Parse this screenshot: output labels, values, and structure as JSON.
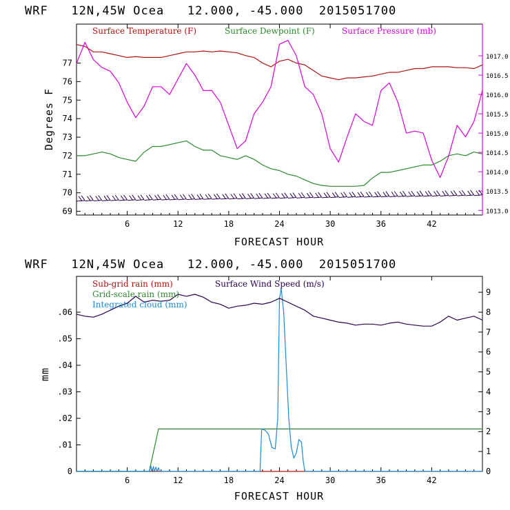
{
  "chart_data": [
    {
      "type": "line",
      "title": "WRF   12N,45W Ocea   12.000, -45.000  2015051700",
      "xlabel": "FORECAST HOUR",
      "ylabel": "Degrees F",
      "xlim": [
        0,
        48
      ],
      "ylim": [
        68.8,
        79.1
      ],
      "y2lim": [
        1012.88,
        1017.82
      ],
      "xticks": [
        6,
        12,
        18,
        24,
        30,
        36,
        42
      ],
      "xtick_labels": [
        "6",
        "12",
        "18",
        "24",
        "30",
        "36",
        "42"
      ],
      "yticks": [
        69,
        70,
        71,
        72,
        73,
        74,
        75,
        76,
        77
      ],
      "ytick_labels": [
        "69",
        "70",
        "71",
        "72",
        "73",
        "74",
        "75",
        "76",
        "77"
      ],
      "y2ticks": [
        1013.0,
        1013.5,
        1014.0,
        1014.5,
        1015.0,
        1015.5,
        1016.0,
        1016.5,
        1017.0
      ],
      "y2tick_labels": [
        "1013.0",
        "1013.5",
        "1014.0",
        "1014.5",
        "1015.0",
        "1015.5",
        "1016.0",
        "1016.5",
        "1017.0"
      ],
      "legend_position": "top",
      "grid": false,
      "series": [
        {
          "name": "Surface Temperature (F)",
          "color": "#b01010",
          "axis": "left",
          "x": [
            0,
            1,
            2,
            3,
            4,
            5,
            6,
            7,
            8,
            9,
            10,
            11,
            12,
            13,
            14,
            15,
            16,
            17,
            18,
            19,
            20,
            21,
            22,
            23,
            24,
            25,
            26,
            27,
            28,
            29,
            30,
            31,
            32,
            33,
            34,
            35,
            36,
            37,
            38,
            39,
            40,
            41,
            42,
            43,
            44,
            45,
            46,
            47,
            48
          ],
          "values": [
            78.0,
            77.9,
            77.6,
            77.6,
            77.5,
            77.4,
            77.3,
            77.35,
            77.3,
            77.3,
            77.3,
            77.4,
            77.5,
            77.6,
            77.6,
            77.65,
            77.6,
            77.65,
            77.6,
            77.55,
            77.4,
            77.3,
            77.0,
            76.8,
            77.1,
            77.2,
            77.0,
            76.9,
            76.6,
            76.3,
            76.2,
            76.1,
            76.2,
            76.2,
            76.25,
            76.3,
            76.4,
            76.5,
            76.5,
            76.6,
            76.7,
            76.7,
            76.8,
            76.8,
            76.8,
            76.75,
            76.75,
            76.7,
            76.9
          ]
        },
        {
          "name": "Surface Dewpoint (F)",
          "color": "#2a8a2a",
          "axis": "left",
          "x": [
            0,
            1,
            2,
            3,
            4,
            5,
            6,
            7,
            8,
            9,
            10,
            11,
            12,
            13,
            14,
            15,
            16,
            17,
            18,
            19,
            20,
            21,
            22,
            23,
            24,
            25,
            26,
            27,
            28,
            29,
            30,
            31,
            32,
            33,
            34,
            35,
            36,
            37,
            38,
            39,
            40,
            41,
            42,
            43,
            44,
            45,
            46,
            47,
            48
          ],
          "values": [
            72.0,
            72.0,
            72.1,
            72.2,
            72.1,
            71.9,
            71.8,
            71.7,
            72.2,
            72.5,
            72.5,
            72.6,
            72.7,
            72.8,
            72.5,
            72.3,
            72.3,
            72.0,
            71.9,
            71.8,
            72.0,
            71.8,
            71.5,
            71.3,
            71.2,
            71.0,
            70.9,
            70.7,
            70.5,
            70.4,
            70.35,
            70.35,
            70.35,
            70.35,
            70.4,
            70.8,
            71.1,
            71.1,
            71.2,
            71.3,
            71.4,
            71.5,
            71.5,
            71.7,
            72.0,
            72.1,
            72.0,
            72.2,
            72.1
          ]
        },
        {
          "name": "Surface Pressure (mb)",
          "color": "#dd00dd",
          "axis": "right",
          "x": [
            0,
            1,
            2,
            3,
            4,
            5,
            6,
            7,
            8,
            9,
            10,
            11,
            12,
            13,
            14,
            15,
            16,
            17,
            18,
            19,
            20,
            21,
            22,
            23,
            24,
            25,
            26,
            27,
            28,
            29,
            30,
            31,
            32,
            33,
            34,
            35,
            36,
            37,
            38,
            39,
            40,
            41,
            42,
            43,
            44,
            45,
            46,
            47,
            48
          ],
          "values": [
            1016.8,
            1017.35,
            1016.9,
            1016.7,
            1016.6,
            1016.3,
            1015.8,
            1015.4,
            1015.7,
            1016.2,
            1016.2,
            1016.0,
            1016.4,
            1016.8,
            1016.5,
            1016.1,
            1016.1,
            1015.8,
            1015.2,
            1014.6,
            1014.8,
            1015.5,
            1015.8,
            1016.2,
            1017.3,
            1017.4,
            1017.0,
            1016.2,
            1016.0,
            1015.5,
            1014.6,
            1014.25,
            1014.9,
            1015.5,
            1015.3,
            1015.2,
            1016.1,
            1016.3,
            1015.8,
            1015.0,
            1015.05,
            1015.0,
            1014.3,
            1013.85,
            1014.4,
            1015.2,
            1014.9,
            1015.3,
            1016.1
          ]
        }
      ],
      "wind_barbs": {
        "color": "#2a0050",
        "x": [
          0.5,
          1.5,
          2.5,
          3.5,
          4.5,
          5.5,
          6.5,
          7.5,
          8.5,
          9.5,
          10.5,
          11.5,
          12.5,
          13.5,
          14.5,
          15.5,
          16.5,
          17.5,
          18.5,
          19.5,
          20.5,
          21.5,
          22.5,
          23.5,
          24.5,
          25.5,
          26.5,
          27.5,
          28.5,
          29.5,
          30.5,
          31.5,
          32.5,
          33.5,
          34.5,
          35.5,
          36.5,
          37.5,
          38.5,
          39.5,
          40.5,
          41.5,
          42.5,
          43.5,
          44.5,
          45.5,
          46.5,
          47.5
        ]
      }
    },
    {
      "type": "line",
      "title": "WRF   12N,45W Ocea   12.000, -45.000  2015051700",
      "xlabel": "FORECAST HOUR",
      "ylabel": "mm",
      "xlim": [
        0,
        48
      ],
      "ylim": [
        0,
        0.0735
      ],
      "y2lim": [
        0,
        9.8
      ],
      "xticks": [
        6,
        12,
        18,
        24,
        30,
        36,
        42
      ],
      "xtick_labels": [
        "6",
        "12",
        "18",
        "24",
        "30",
        "36",
        "42"
      ],
      "yticks": [
        0,
        0.01,
        0.02,
        0.03,
        0.04,
        0.05,
        0.06
      ],
      "ytick_labels": [
        "0",
        ".01",
        ".02",
        ".03",
        ".04",
        ".05",
        ".06"
      ],
      "y2ticks": [
        0,
        1,
        2,
        3,
        4,
        5,
        6,
        7,
        8,
        9
      ],
      "y2tick_labels": [
        "0",
        "1",
        "2",
        "3",
        "4",
        "5",
        "6",
        "7",
        "8",
        "9"
      ],
      "legend_position": "top-left",
      "grid": false,
      "series": [
        {
          "name": "Sub-grid rain (mm)",
          "color": "#b01010",
          "axis": "left",
          "x": [
            0,
            48
          ],
          "values": [
            0,
            0
          ]
        },
        {
          "name": "Grid-scale rain (mm)",
          "color": "#2a8a2a",
          "axis": "left",
          "x": [
            0,
            8.6,
            9.7,
            48
          ],
          "values": [
            0,
            0,
            0.016,
            0.016
          ]
        },
        {
          "name": "Integrated cloud (mm)",
          "color": "#1a8ad8",
          "axis": "left",
          "x": [
            0,
            8.6,
            8.8,
            8.9,
            9.1,
            9.2,
            9.4,
            9.5,
            9.7,
            9.8,
            21.7,
            21.9,
            22.3,
            22.7,
            23.1,
            23.5,
            23.8,
            24.0,
            24.2,
            24.5,
            24.8,
            25.1,
            25.4,
            25.7,
            26.0,
            26.3,
            26.6,
            26.8,
            27.0,
            48
          ],
          "values": [
            0,
            0,
            0.002,
            0,
            0.0018,
            0,
            0.0016,
            0,
            0.0014,
            0,
            0,
            0.016,
            0.0155,
            0.014,
            0.009,
            0.0085,
            0.02,
            0.065,
            0.069,
            0.06,
            0.04,
            0.02,
            0.009,
            0.005,
            0.007,
            0.012,
            0.011,
            0.004,
            0,
            0
          ]
        },
        {
          "name": "Surface Wind Speed (m/s)",
          "color": "#2a0050",
          "axis": "right",
          "x": [
            0,
            1,
            2,
            3,
            4,
            5,
            6,
            7,
            8,
            9,
            10,
            11,
            12,
            13,
            14,
            15,
            16,
            17,
            18,
            19,
            20,
            21,
            22,
            23,
            24,
            25,
            26,
            27,
            28,
            29,
            30,
            31,
            32,
            33,
            34,
            35,
            36,
            37,
            38,
            39,
            40,
            41,
            42,
            43,
            44,
            45,
            46,
            47,
            48
          ],
          "values": [
            7.9,
            7.8,
            7.75,
            7.9,
            8.1,
            8.3,
            8.45,
            8.8,
            8.5,
            8.6,
            8.55,
            8.6,
            8.9,
            8.8,
            8.9,
            8.75,
            8.5,
            8.4,
            8.2,
            8.3,
            8.35,
            8.45,
            8.4,
            8.5,
            8.7,
            8.5,
            8.3,
            8.1,
            7.8,
            7.7,
            7.6,
            7.5,
            7.45,
            7.35,
            7.4,
            7.4,
            7.35,
            7.45,
            7.5,
            7.4,
            7.35,
            7.3,
            7.3,
            7.5,
            7.8,
            7.6,
            7.7,
            7.8,
            7.6
          ]
        }
      ]
    }
  ]
}
